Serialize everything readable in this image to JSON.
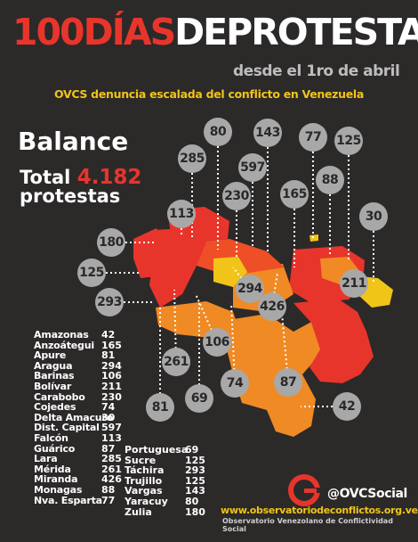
{
  "header": {
    "title_red": "100DÍAS",
    "title_white": "DEPROTESTAS",
    "subtitle": "desde el 1ro de abril",
    "tagline": "OVCS denuncia escalada del conflicto en Venezuela"
  },
  "summary": {
    "balance_label": "Balance",
    "total_prefix": "Total",
    "total_value": "4.182",
    "total_suffix": "protestas"
  },
  "colors": {
    "background": "#2c2929",
    "red": "#e8352c",
    "orange_red": "#ef4f26",
    "orange": "#f08a24",
    "yellow": "#f0c419",
    "bubble": "#a8a8a8"
  },
  "map_bubbles": [
    "80",
    "143",
    "77",
    "125",
    "285",
    "597",
    "88",
    "230",
    "165",
    "113",
    "30",
    "180",
    "125",
    "211",
    "293",
    "294",
    "426",
    "106",
    "261",
    "69",
    "74",
    "87",
    "81",
    "42"
  ],
  "states_col1": [
    {
      "name": "Amazonas",
      "value": "42"
    },
    {
      "name": "Anzoátegui",
      "value": "165"
    },
    {
      "name": "Apure",
      "value": "81"
    },
    {
      "name": "Aragua",
      "value": "294"
    },
    {
      "name": "Barinas",
      "value": "106"
    },
    {
      "name": "Bolívar",
      "value": "211"
    },
    {
      "name": "Carabobo",
      "value": "230"
    },
    {
      "name": "Cojedes",
      "value": "74"
    },
    {
      "name": "Delta Amacuro",
      "value": "30"
    },
    {
      "name": "Dist. Capital",
      "value": "597"
    },
    {
      "name": "Falcón",
      "value": "113"
    },
    {
      "name": "Guárico",
      "value": "87"
    },
    {
      "name": "Lara",
      "value": "285"
    },
    {
      "name": "Mérida",
      "value": "261"
    },
    {
      "name": "Miranda",
      "value": "426"
    },
    {
      "name": "Monagas",
      "value": "88"
    },
    {
      "name": "Nva. Esparta",
      "value": "77"
    }
  ],
  "states_col2": [
    {
      "name": "Portuguesa",
      "value": "69"
    },
    {
      "name": "Sucre",
      "value": "125"
    },
    {
      "name": "Táchira",
      "value": "293"
    },
    {
      "name": "Trujillo",
      "value": "125"
    },
    {
      "name": "Vargas",
      "value": "143"
    },
    {
      "name": "Yaracuy",
      "value": "80"
    },
    {
      "name": "Zulia",
      "value": "180"
    }
  ],
  "footer": {
    "handle": "@OVCSocial",
    "url": "www.observatoriodeconflictos.org.ve",
    "org": "Observatorio Venezolano de Conflictividad Social"
  }
}
